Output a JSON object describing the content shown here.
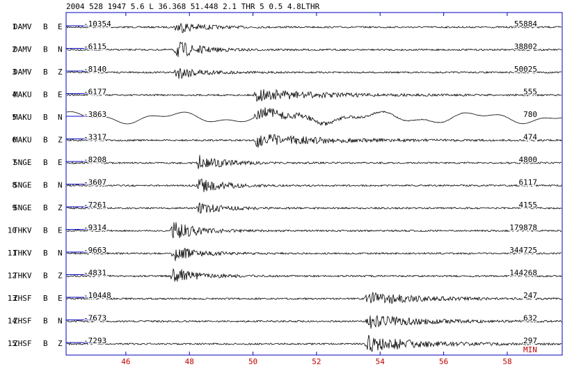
{
  "chart_data": {
    "type": "seismogram",
    "title": "2004  528 1947  5.6 L  36.368  51.448  2.1  THR  5 0.5 4.8LTHR",
    "xlabel": "MIN",
    "xlim": [
      44.12,
      59.73
    ],
    "xticks": [
      46,
      48,
      50,
      52,
      54,
      56,
      58
    ],
    "traces": [
      {
        "number": 1,
        "station": "DAMV",
        "band": "B",
        "component": "E",
        "min": -10354,
        "max": 55884
      },
      {
        "number": 2,
        "station": "DAMV",
        "band": "B",
        "component": "N",
        "min": -6115,
        "max": 38802
      },
      {
        "number": 3,
        "station": "DAMV",
        "band": "B",
        "component": "Z",
        "min": -8140,
        "max": 50025
      },
      {
        "number": 4,
        "station": "MAKU",
        "band": "B",
        "component": "E",
        "min": -6177,
        "max": 555
      },
      {
        "number": 5,
        "station": "MAKU",
        "band": "B",
        "component": "N",
        "min": -3863,
        "max": 780
      },
      {
        "number": 6,
        "station": "MAKU",
        "band": "B",
        "component": "Z",
        "min": -3317,
        "max": 474
      },
      {
        "number": 7,
        "station": "SNGE",
        "band": "B",
        "component": "E",
        "min": -8208,
        "max": 4800
      },
      {
        "number": 8,
        "station": "SNGE",
        "band": "B",
        "component": "N",
        "min": -3607,
        "max": 6117
      },
      {
        "number": 9,
        "station": "SNGE",
        "band": "B",
        "component": "Z",
        "min": -7261,
        "max": 4155
      },
      {
        "number": 10,
        "station": "THKV",
        "band": "B",
        "component": "E",
        "min": -9314,
        "max": 179878
      },
      {
        "number": 11,
        "station": "THKV",
        "band": "B",
        "component": "N",
        "min": -9663,
        "max": 344725
      },
      {
        "number": 12,
        "station": "THKV",
        "band": "B",
        "component": "Z",
        "min": -4831,
        "max": 144268
      },
      {
        "number": 13,
        "station": "ZHSF",
        "band": "B",
        "component": "E",
        "min": -10448,
        "max": 247
      },
      {
        "number": 14,
        "station": "ZHSF",
        "band": "B",
        "component": "N",
        "min": -7673,
        "max": 632
      },
      {
        "number": 15,
        "station": "ZHSF",
        "band": "B",
        "component": "Z",
        "min": -7293,
        "max": 297
      }
    ]
  }
}
